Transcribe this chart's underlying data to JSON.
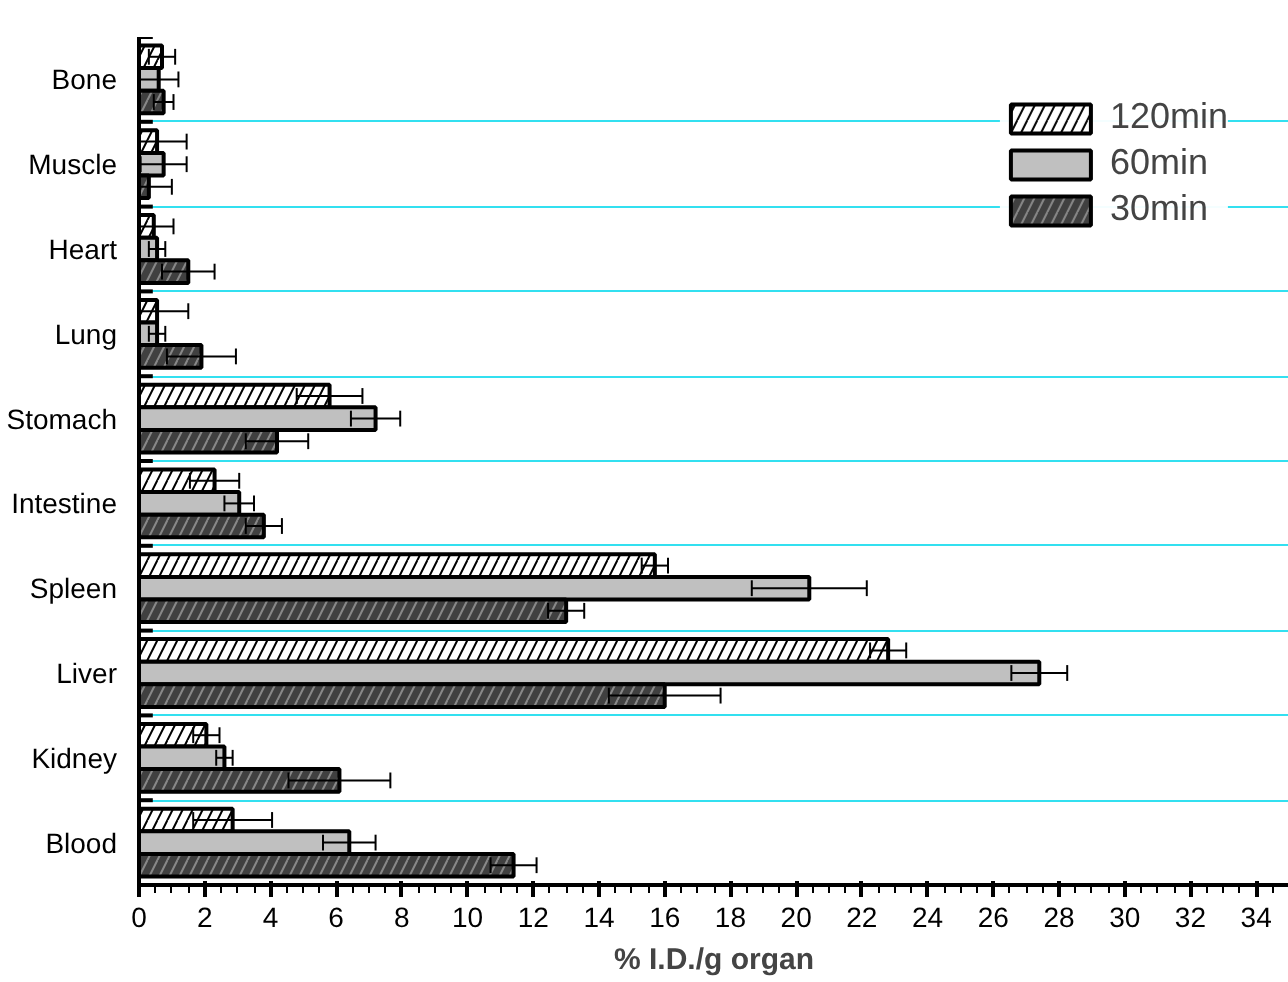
{
  "chart_data": {
    "type": "bar",
    "orientation": "horizontal",
    "xlabel": "% I.D./g organ",
    "categories": [
      "Bone",
      "Muscle",
      "Heart",
      "Lung",
      "Stomach",
      "Intestine",
      "Spleen",
      "Liver",
      "Kidney",
      "Blood"
    ],
    "series": [
      {
        "name": "120min",
        "color": "#ffffff",
        "values": [
          0.7,
          0.55,
          0.45,
          0.55,
          5.8,
          2.3,
          15.7,
          22.8,
          2.05,
          2.85
        ],
        "errors": [
          0.4,
          0.9,
          0.6,
          0.95,
          1.0,
          0.75,
          0.4,
          0.55,
          0.4,
          1.2
        ]
      },
      {
        "name": "60min",
        "color": "#c0c0c0",
        "values": [
          0.6,
          0.75,
          0.55,
          0.55,
          7.2,
          3.05,
          20.4,
          27.4,
          2.6,
          6.4
        ],
        "errors": [
          0.6,
          0.7,
          0.25,
          0.25,
          0.75,
          0.45,
          1.75,
          0.85,
          0.25,
          0.8
        ]
      },
      {
        "name": "30min",
        "color": "#404040",
        "values": [
          0.75,
          0.3,
          1.5,
          1.9,
          4.2,
          3.8,
          13.0,
          16.0,
          6.1,
          11.4
        ],
        "errors": [
          0.3,
          0.7,
          0.8,
          1.05,
          0.95,
          0.55,
          0.55,
          1.7,
          1.55,
          0.7
        ]
      }
    ],
    "xlim": [
      0,
      35
    ],
    "xticks": [
      0,
      2,
      4,
      6,
      8,
      10,
      12,
      14,
      16,
      18,
      20,
      22,
      24,
      26,
      28,
      30,
      32,
      34
    ],
    "grid": "y",
    "legend": "top right"
  }
}
